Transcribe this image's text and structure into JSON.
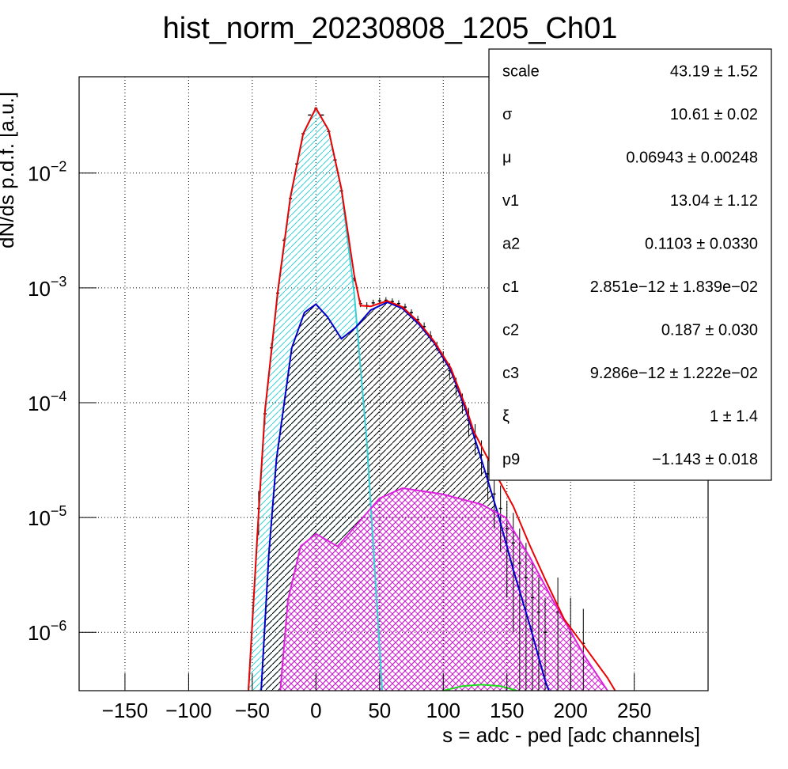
{
  "chart_data": {
    "type": "line",
    "title": "hist_norm_20230808_1205_Ch01",
    "x_label": "s = adc - ped [adc channels]",
    "y_label": "dN/ds p.d.f. [a.u.]",
    "log_y": true,
    "grid": true,
    "xlim": [
      -186,
      308
    ],
    "ylim": [
      3.1e-07,
      0.069
    ],
    "xticks": [
      {
        "value": -150,
        "label": "−150"
      },
      {
        "value": -100,
        "label": "−100"
      },
      {
        "value": -50,
        "label": "−50"
      },
      0,
      50,
      100,
      150,
      200,
      250
    ],
    "yticks": [
      {
        "value": 1e-06,
        "label": "10−6"
      },
      {
        "value": 1e-05,
        "label": "10−5"
      },
      {
        "value": 0.0001,
        "label": "10−4"
      },
      {
        "value": 0.001,
        "label": "10−3"
      },
      {
        "value": 0.01,
        "label": "10−2"
      }
    ],
    "histogram": {
      "color": "#000000",
      "x": [
        -45,
        -40,
        -35,
        -30,
        -25,
        -20,
        -15,
        -10,
        -5,
        0,
        5,
        10,
        15,
        20,
        25,
        30,
        35,
        40,
        45,
        50,
        55,
        60,
        65,
        70,
        75,
        80,
        85,
        90,
        95,
        100,
        105,
        110,
        115,
        120,
        125,
        130,
        135,
        140,
        145,
        150,
        155,
        160,
        165,
        170,
        175,
        180,
        190,
        200,
        210
      ],
      "values": [
        1.2e-05,
        8e-05,
        0.0003,
        0.0009,
        0.0026,
        0.006,
        0.012,
        0.022,
        0.032,
        0.0365,
        0.032,
        0.023,
        0.013,
        0.007,
        0.0028,
        0.0012,
        0.00073,
        0.0007,
        0.00074,
        0.00077,
        0.00078,
        0.00076,
        0.00073,
        0.00068,
        0.00061,
        0.00053,
        0.00046,
        0.00038,
        0.00031,
        0.00025,
        0.00019,
        0.00014,
        0.0001,
        7e-05,
        5e-05,
        3.5e-05,
        2.4e-05,
        1.6e-05,
        1.2e-05,
        8e-06,
        6e-06,
        4e-06,
        3e-06,
        2e-06,
        1.5e-06,
        1e-06,
        1.5e-06,
        1e-06,
        8e-07
      ],
      "errors": [
        5e-06,
        1.5e-05,
        3e-05,
        5e-05,
        0.0001,
        0.00015,
        0.0002,
        0.0003,
        0.0003,
        0.0004,
        0.0003,
        0.0003,
        0.0002,
        0.00015,
        0.0001,
        6e-05,
        5e-05,
        5e-05,
        5e-05,
        5e-05,
        5e-05,
        5e-05,
        5e-05,
        5e-05,
        4e-05,
        4e-05,
        4e-05,
        4e-05,
        3e-05,
        3e-05,
        3e-05,
        2.5e-05,
        2e-05,
        2e-05,
        1.5e-05,
        1.2e-05,
        1e-05,
        8e-06,
        7e-06,
        6e-06,
        5e-06,
        4e-06,
        3e-06,
        2e-06,
        1.5e-06,
        1e-06,
        1.5e-06,
        1e-06,
        8e-07
      ]
    },
    "series": [
      {
        "color": "#33d0d6",
        "fill": "hatch",
        "fill_color": "#33d0d6",
        "x": [
          -53,
          -45,
          -40,
          -30,
          -20,
          -10,
          0,
          10,
          20,
          30,
          40,
          50,
          52
        ],
        "values": [
          3.1e-07,
          1.07e-05,
          8.4e-05,
          0.00091,
          0.0061,
          0.022,
          0.0368,
          0.0236,
          0.0072,
          0.00091,
          4.5e-05,
          7.3e-07,
          3.1e-07
        ]
      },
      {
        "color": "#0000cc",
        "fill": "hatch",
        "fill_color": "#000000",
        "x": [
          -43,
          -37,
          -31,
          -19,
          -9,
          0,
          9,
          20,
          31,
          43,
          56,
          68,
          81,
          93,
          106,
          118,
          130,
          143,
          155,
          168,
          180,
          183
        ],
        "values": [
          3.1e-07,
          4.8e-06,
          3.2e-05,
          0.0003,
          0.00061,
          0.00072,
          0.00056,
          0.00036,
          0.00045,
          0.00064,
          0.00075,
          0.00066,
          0.00048,
          0.00033,
          0.00019,
          8.4e-05,
          3.2e-05,
          1.07e-05,
          3.5e-06,
          1.15e-06,
          3.8e-07,
          3.1e-07
        ]
      },
      {
        "color": "#dd22dd",
        "fill": "crosshatch",
        "fill_color": "#dd22dd",
        "x": [
          -28,
          -22,
          -12,
          0,
          17,
          31,
          50,
          68,
          99,
          130,
          149,
          168,
          186,
          211,
          229
        ],
        "values": [
          3.1e-07,
          1.9e-06,
          5.6e-06,
          7.2e-06,
          5.6e-06,
          8.4e-06,
          1.47e-05,
          1.8e-05,
          1.6e-05,
          1.3e-05,
          1e-05,
          4.5e-06,
          1.9e-06,
          6.2e-07,
          3.1e-07
        ]
      },
      {
        "color": "#22dd22",
        "x": [
          100,
          115,
          130,
          145,
          158
        ],
        "values": [
          3.1e-07,
          3.4e-07,
          3.5e-07,
          3.4e-07,
          3.1e-07
        ]
      },
      {
        "color": "#ee0000",
        "x": [
          -53,
          -45,
          -40,
          -30,
          -20,
          -10,
          0,
          10,
          20,
          30,
          35,
          43,
          56,
          68,
          81,
          93,
          106,
          118,
          124,
          143,
          155,
          168,
          180,
          195,
          211,
          229,
          235
        ],
        "values": [
          3.1e-07,
          1.1e-05,
          8.6e-05,
          0.00093,
          0.0062,
          0.022,
          0.0368,
          0.0236,
          0.0073,
          0.0013,
          0.0007,
          0.00069,
          0.00077,
          0.00068,
          0.0005,
          0.00034,
          0.0002,
          9e-05,
          5.6e-05,
          2.2e-05,
          1.25e-05,
          5.7e-06,
          2.9e-06,
          1.3e-06,
          7.5e-07,
          4e-07,
          3.1e-07
        ]
      }
    ],
    "stats": [
      {
        "label": "scale",
        "value": "43.19 ± 1.52"
      },
      {
        "label": "σ",
        "value": "10.61 ± 0.02"
      },
      {
        "label": "μ",
        "value": "0.06943 ± 0.00248"
      },
      {
        "label": "v1",
        "value": "13.04 ± 1.12"
      },
      {
        "label": "a2",
        "value": "0.1103 ± 0.0330"
      },
      {
        "label": "c1",
        "value": "2.851e−12 ± 1.839e−02"
      },
      {
        "label": "c2",
        "value": "0.187 ± 0.030"
      },
      {
        "label": "c3",
        "value": "9.286e−12 ± 1.222e−02"
      },
      {
        "label": "ξ",
        "value": "1 ± 1.4"
      },
      {
        "label": "p9",
        "value": "−1.143 ± 0.018"
      }
    ]
  }
}
